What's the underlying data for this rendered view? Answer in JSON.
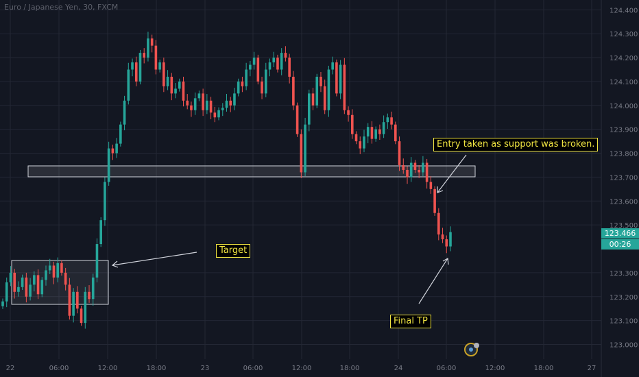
{
  "symbol_label": "Euro / Japanese Yen, 30, FXCM",
  "chart_data": {
    "type": "candlestick",
    "y_ticks": [
      "124.400",
      "124.300",
      "124.200",
      "124.100",
      "124.000",
      "123.900",
      "123.800",
      "123.700",
      "123.600",
      "123.500",
      "123.300",
      "123.200",
      "123.100",
      "123.000"
    ],
    "x_ticks": [
      "22",
      "06:00",
      "12:00",
      "18:00",
      "23",
      "06:00",
      "12:00",
      "18:00",
      "24",
      "06:00",
      "12:00",
      "18:00",
      "27"
    ],
    "ylim": [
      122.97,
      124.44
    ],
    "last_price": "123.466",
    "countdown": "00:26",
    "up_color": "#26a69a",
    "down_color": "#ef5350",
    "grid": true,
    "closes": [
      123.18,
      123.26,
      123.3,
      123.22,
      123.24,
      123.28,
      123.2,
      123.25,
      123.29,
      123.21,
      123.27,
      123.31,
      123.33,
      123.28,
      123.34,
      123.3,
      123.25,
      123.12,
      123.22,
      123.15,
      123.09,
      123.22,
      123.19,
      123.28,
      123.42,
      123.52,
      123.68,
      123.82,
      123.8,
      123.84,
      123.92,
      124.02,
      124.15,
      124.18,
      124.1,
      124.22,
      124.2,
      124.28,
      124.25,
      124.15,
      124.18,
      124.08,
      124.12,
      124.05,
      124.07,
      124.1,
      124.02,
      124.0,
      123.98,
      124.03,
      124.05,
      123.98,
      124.02,
      123.97,
      123.95,
      123.98,
      123.99,
      124.02,
      124.0,
      124.05,
      124.1,
      124.08,
      124.15,
      124.17,
      124.2,
      124.1,
      124.05,
      124.15,
      124.18,
      124.2,
      124.15,
      124.22,
      124.2,
      124.12,
      124.0,
      123.88,
      123.72,
      123.92,
      124.05,
      124.0,
      124.12,
      124.08,
      123.98,
      124.15,
      124.18,
      124.05,
      124.17,
      123.98,
      123.96,
      123.88,
      123.85,
      123.82,
      123.87,
      123.91,
      123.86,
      123.9,
      123.88,
      123.93,
      123.95,
      123.92,
      123.85,
      123.75,
      123.73,
      123.7,
      123.76,
      123.73,
      123.72,
      123.76,
      123.68,
      123.65,
      123.55,
      123.46,
      123.44,
      123.41,
      123.47
    ],
    "annotations": [
      {
        "text": "Target"
      },
      {
        "text": "Entry taken as support was broken."
      },
      {
        "text": "Final TP"
      }
    ]
  }
}
